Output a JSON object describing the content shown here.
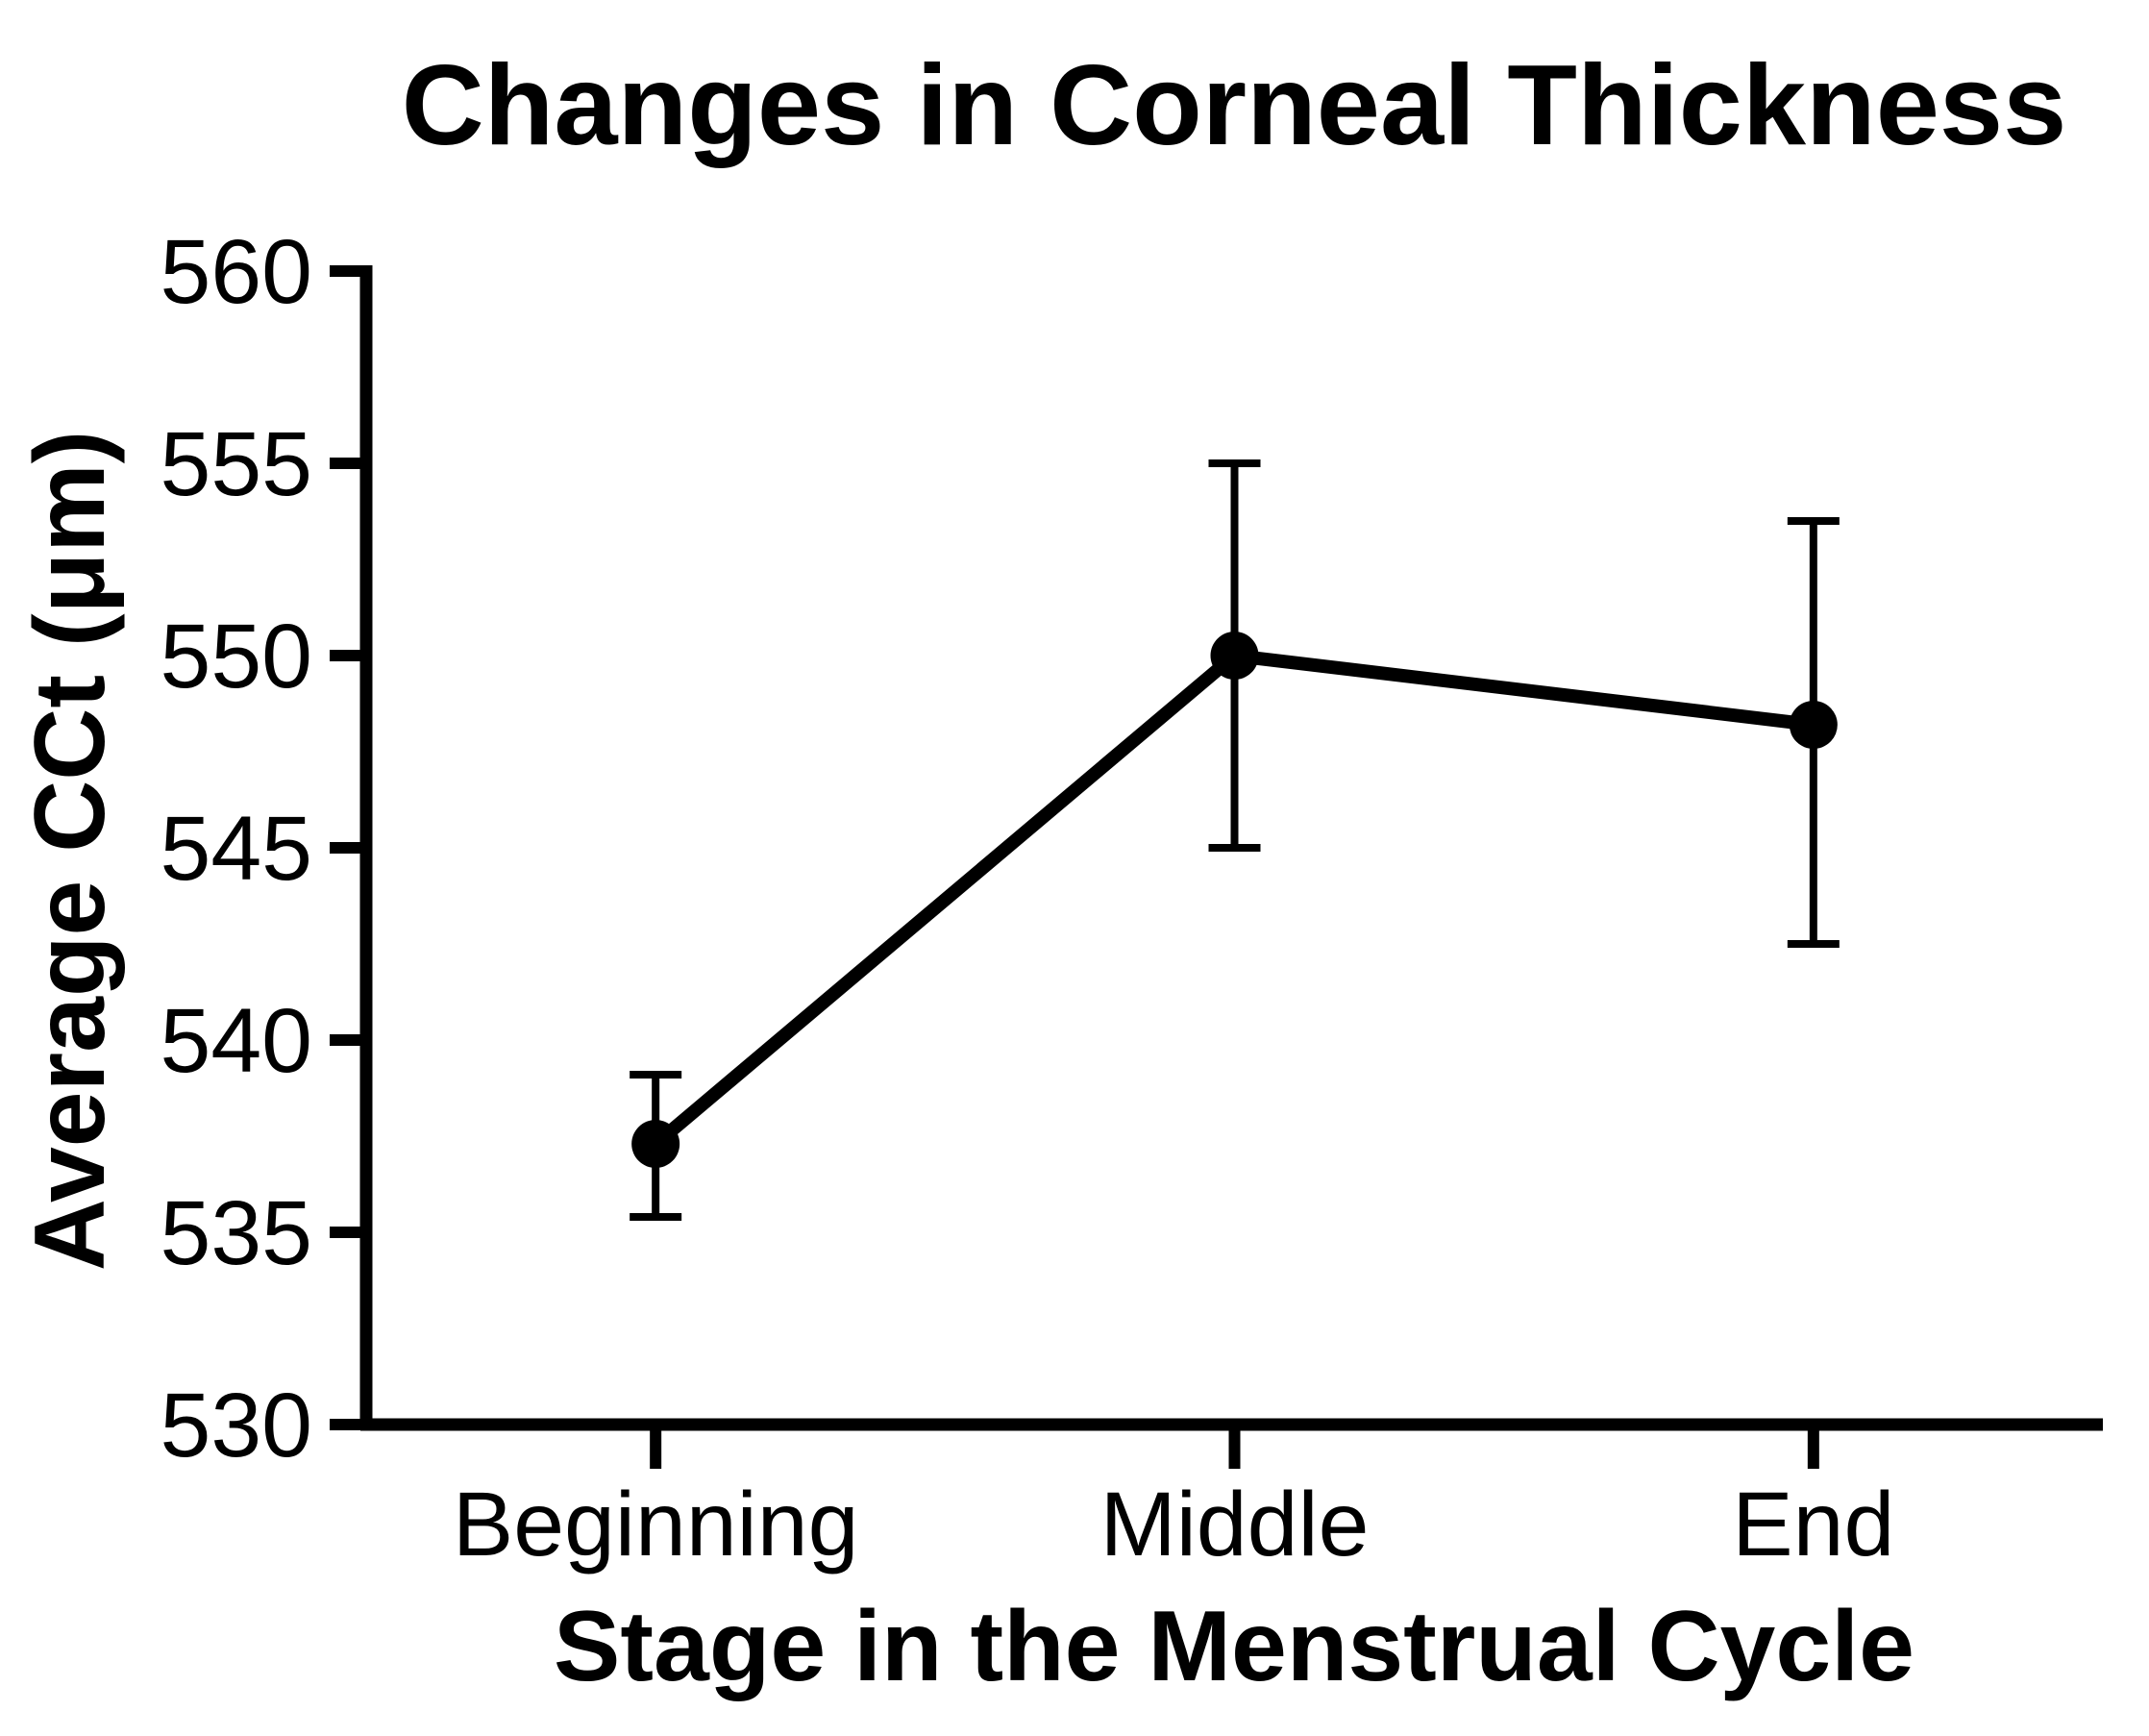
{
  "chart_data": {
    "type": "line",
    "title": "Changes in Corneal Thickness",
    "xlabel": "Stage in the Menstrual Cycle",
    "ylabel": "Average CCt (μm)",
    "categories": [
      "Beginning",
      "Middle",
      "End"
    ],
    "series": [
      {
        "name": "Average CCt",
        "values": [
          537.3,
          550.0,
          548.2
        ],
        "error_low": [
          535.4,
          545.0,
          542.5
        ],
        "error_high": [
          539.1,
          555.0,
          553.5
        ]
      }
    ],
    "ylim": [
      530,
      560
    ],
    "ytick_step": 5,
    "yticks": [
      530,
      535,
      540,
      545,
      550,
      555,
      560
    ],
    "grid": false,
    "legend": "none",
    "marker": "filled-circle",
    "line_color": "#000000",
    "background_color": "#ffffff"
  }
}
